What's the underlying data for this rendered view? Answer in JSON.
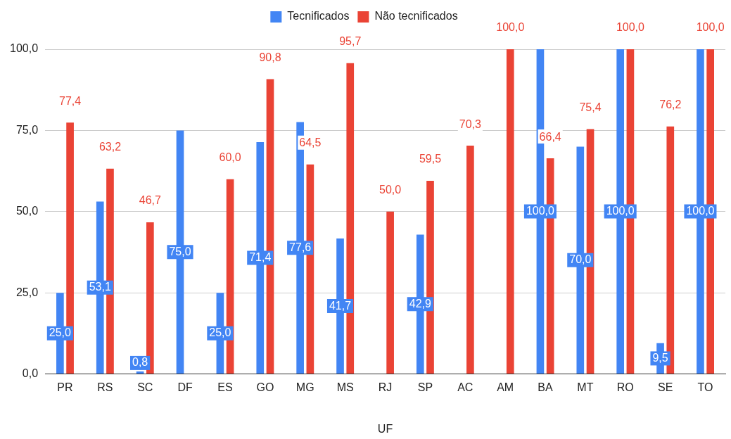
{
  "chart_data": {
    "type": "bar",
    "xlabel": "UF",
    "categories": [
      "PR",
      "RS",
      "SC",
      "DF",
      "ES",
      "GO",
      "MG",
      "MS",
      "RJ",
      "SP",
      "AC",
      "AM",
      "BA",
      "MT",
      "RO",
      "SE",
      "TO"
    ],
    "series": [
      {
        "name": "Tecnificados",
        "color": "#4285f4",
        "values": [
          25.0,
          53.1,
          0.8,
          75.0,
          25.0,
          71.4,
          77.6,
          41.7,
          null,
          42.9,
          null,
          null,
          100.0,
          70.0,
          100.0,
          9.5,
          100.0
        ],
        "value_labels": [
          "25,0",
          "53,1",
          "0,8",
          "75,0",
          "25,0",
          "71,4",
          "77,6",
          "41,7",
          null,
          "42,9",
          null,
          null,
          "100,0",
          "70,0",
          "100,0",
          "9,5",
          "100,0"
        ]
      },
      {
        "name": "Não tecnificados",
        "color": "#ea4335",
        "values": [
          77.4,
          63.2,
          46.7,
          null,
          60.0,
          90.8,
          64.5,
          95.7,
          50.0,
          59.5,
          70.3,
          100.0,
          66.4,
          75.4,
          100.0,
          76.2,
          100.0
        ],
        "value_labels": [
          "77,4",
          "63,2",
          "46,7",
          null,
          "60,0",
          "90,8",
          "64,5",
          "95,7",
          "50,0",
          "59,5",
          "70,3",
          "100,0",
          "66,4",
          "75,4",
          "100,0",
          "76,2",
          "100,0"
        ]
      }
    ],
    "ylim": [
      0,
      100
    ],
    "yticks": [
      {
        "value": 0,
        "label": "0,0"
      },
      {
        "value": 25,
        "label": "25,0"
      },
      {
        "value": 50,
        "label": "50,0"
      },
      {
        "value": 75,
        "label": "75,0"
      },
      {
        "value": 100,
        "label": "100,0"
      }
    ],
    "grid": "y",
    "legend": "top"
  }
}
